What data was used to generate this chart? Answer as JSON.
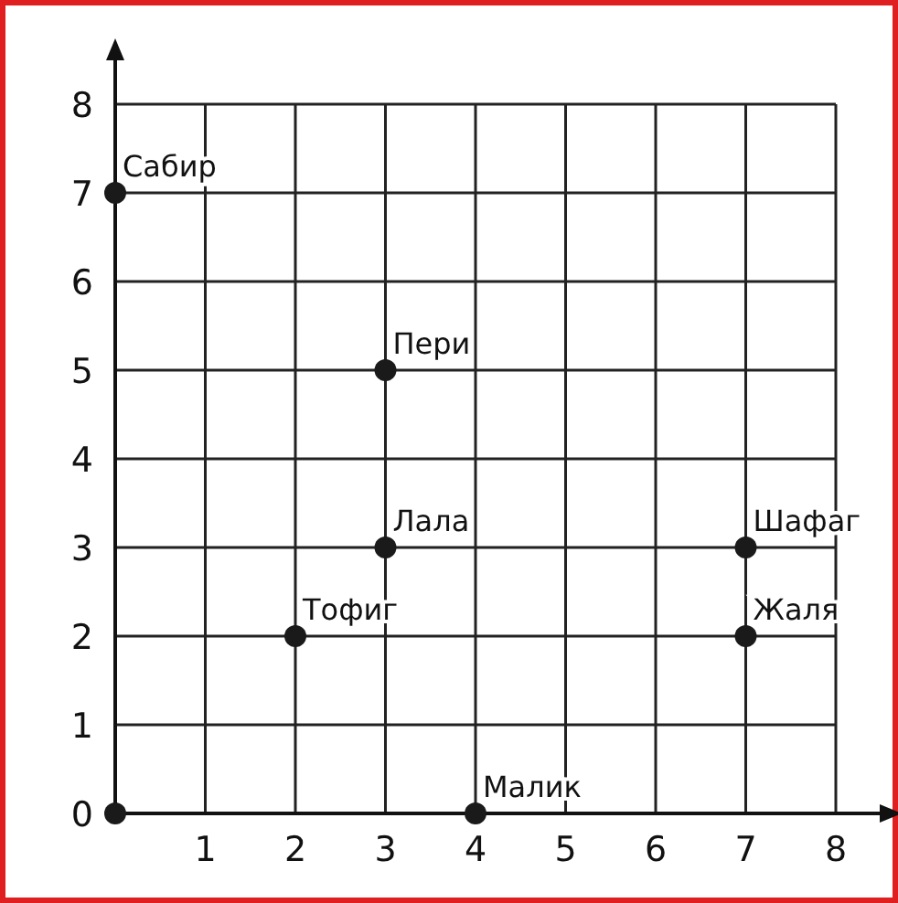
{
  "chart_data": {
    "type": "scatter",
    "x": [
      0,
      0,
      3,
      3,
      2,
      7,
      7,
      4
    ],
    "values": [
      0,
      7,
      5,
      3,
      2,
      3,
      2,
      0
    ],
    "color": "#1a1a1a",
    "marker": "circle",
    "grid": true,
    "xlim": [
      0,
      8
    ],
    "ylim": [
      0,
      8
    ],
    "xticks": [
      1,
      2,
      3,
      4,
      5,
      6,
      7,
      8
    ],
    "yticks": [
      0,
      1,
      2,
      3,
      4,
      5,
      6,
      7,
      8
    ],
    "annotations": [
      {
        "text": "Сабир",
        "x": 0,
        "y": 7
      },
      {
        "text": "Пери",
        "x": 3,
        "y": 5
      },
      {
        "text": "Лала",
        "x": 3,
        "y": 3
      },
      {
        "text": "Тофиг",
        "x": 2,
        "y": 2
      },
      {
        "text": "Шафаг",
        "x": 7,
        "y": 3
      },
      {
        "text": "Жаля",
        "x": 7,
        "y": 2
      },
      {
        "text": "Малик",
        "x": 4,
        "y": 0
      }
    ]
  }
}
